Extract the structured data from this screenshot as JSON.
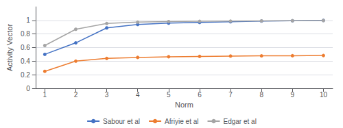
{
  "chart_data": {
    "type": "line",
    "xlabel": "Norm",
    "ylabel": "Activity Vector",
    "x": [
      1,
      2,
      3,
      4,
      5,
      6,
      7,
      8,
      9,
      10
    ],
    "series": [
      {
        "name": "Sabour et al",
        "color": "#4472C4",
        "marker": "circle",
        "values": [
          0.5,
          0.67,
          0.89,
          0.94,
          0.96,
          0.97,
          0.98,
          0.99,
          0.995,
          1.0
        ]
      },
      {
        "name": "Afriyie et al",
        "color": "#ED7D31",
        "marker": "circle",
        "values": [
          0.25,
          0.4,
          0.44,
          0.455,
          0.465,
          0.47,
          0.475,
          0.478,
          0.48,
          0.483
        ]
      },
      {
        "name": "Edgar et al",
        "color": "#A5A5A5",
        "marker": "circle",
        "values": [
          0.63,
          0.87,
          0.955,
          0.975,
          0.983,
          0.987,
          0.99,
          0.993,
          0.996,
          0.998
        ]
      }
    ],
    "xlim": [
      0.7,
      10.3
    ],
    "xticks": [
      1,
      2,
      3,
      4,
      5,
      6,
      7,
      8,
      9,
      10
    ],
    "ylim": [
      0,
      1.2
    ],
    "yticks": [
      0,
      0.2,
      0.4,
      0.6,
      0.8,
      1
    ],
    "grid": true,
    "legend": "bottom"
  }
}
